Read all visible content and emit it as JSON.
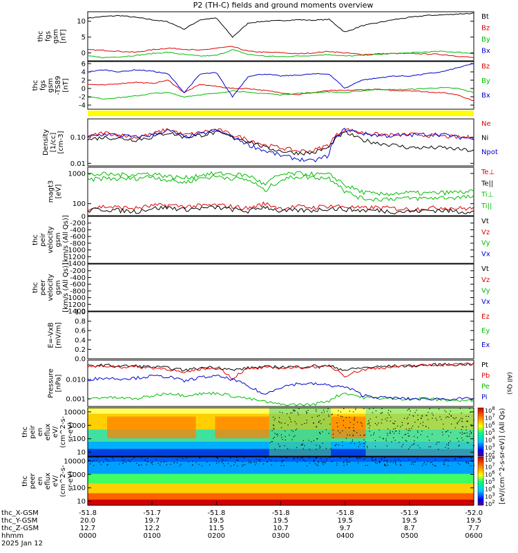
{
  "title": "P2 (TH-C) fields and ground moments overview",
  "panels": [
    {
      "id": "fgs-btot",
      "ylabel": [
        "thc",
        "fgs",
        "gsm",
        "[nT]"
      ],
      "yticks": [
        "10",
        "5",
        "0"
      ],
      "ylim": [
        -2.5,
        13
      ],
      "legend": [
        {
          "text": "Bt",
          "color": "#000000"
        },
        {
          "text": "Bz",
          "color": "#dd0000"
        },
        {
          "text": "By",
          "color": "#00bb00"
        },
        {
          "text": "Bx",
          "color": "#0000cc"
        }
      ]
    },
    {
      "id": "fgs-dsl",
      "ylabel": [
        "thc",
        "fgs",
        "gsm",
        "-TS89",
        "[nT]"
      ],
      "yticks": [
        "6",
        "4",
        "2",
        "0",
        "-2",
        "-4"
      ],
      "ylim": [
        -5,
        6.5
      ],
      "legend": [
        {
          "text": "Bz",
          "color": "#dd0000"
        },
        {
          "text": "By",
          "color": "#00bb00"
        },
        {
          "text": "Bx",
          "color": "#0000cc"
        }
      ]
    },
    {
      "id": "density",
      "ylabel": [
        "Density",
        "[1/cc]",
        "[cm-3]"
      ],
      "yticks": [
        "0.10",
        "0.01"
      ],
      "ylim": [
        0.008,
        0.5
      ],
      "ylog": true,
      "legend": [
        {
          "text": "Ne",
          "color": "#dd0000"
        },
        {
          "text": "Ni",
          "color": "#000000"
        },
        {
          "text": "Npot",
          "color": "#0000cc"
        }
      ]
    },
    {
      "id": "temperature",
      "ylabel": [
        "magt3",
        "[eV]"
      ],
      "yticks": [
        "1000",
        "100"
      ],
      "ylim": [
        40,
        1600
      ],
      "ylog": true,
      "legend": [
        {
          "text": "Te⊥",
          "color": "#dd0000"
        },
        {
          "text": "Te||",
          "color": "#000000"
        },
        {
          "text": "Ti⊥",
          "color": "#00bb00"
        },
        {
          "text": "Ti||",
          "color": "#00bb00"
        }
      ]
    },
    {
      "id": "peir-velocity",
      "ylabel": [
        "thc",
        "peir",
        "velocity",
        "gsm",
        "[km/s (All Qs)]"
      ],
      "yticks": [
        "0",
        "-200",
        "-400",
        "-600",
        "-800",
        "-1000",
        "-1200",
        "-1400"
      ],
      "ylim": [
        -1400,
        0
      ],
      "legend": [
        {
          "text": "Vt",
          "color": "#000000"
        },
        {
          "text": "Vz",
          "color": "#dd0000"
        },
        {
          "text": "Vy",
          "color": "#00bb00"
        },
        {
          "text": "Vx",
          "color": "#0000cc"
        }
      ]
    },
    {
      "id": "peer-velocity",
      "ylabel": [
        "thc",
        "peer",
        "velocity",
        "gsm",
        "[km/s (All Qs)]"
      ],
      "yticks": [
        "-200",
        "-400",
        "-600",
        "-800",
        "-1000",
        "-1200",
        "-1400"
      ],
      "ylim": [
        -1400,
        0
      ],
      "legend": [
        {
          "text": "Vt",
          "color": "#000000"
        },
        {
          "text": "Vz",
          "color": "#dd0000"
        },
        {
          "text": "Vy",
          "color": "#00bb00"
        },
        {
          "text": "Vx",
          "color": "#0000cc"
        }
      ]
    },
    {
      "id": "efield",
      "ylabel": [
        "E=-VxB",
        "[mV/m]"
      ],
      "yticks": [
        "1.0",
        "0.8",
        "0.6",
        "0.4",
        "0.2",
        "0.0"
      ],
      "ylim": [
        0,
        1
      ],
      "legend": [
        {
          "text": "Ez",
          "color": "#dd0000"
        },
        {
          "text": "Ey",
          "color": "#00bb00"
        },
        {
          "text": "Ex",
          "color": "#0000cc"
        }
      ]
    },
    {
      "id": "pressure",
      "ylabel": [
        "Pressure",
        "[nPa]"
      ],
      "yticks": [
        "0.010",
        "0.001"
      ],
      "ylim": [
        0.0004,
        0.1
      ],
      "ylog": true,
      "legend": [
        {
          "text": "Pt",
          "color": "#000000"
        },
        {
          "text": "Pb",
          "color": "#dd0000"
        },
        {
          "text": "Pe",
          "color": "#00bb00"
        },
        {
          "text": "Pi",
          "color": "#0000cc"
        }
      ],
      "legend_side": "(All Qs)"
    },
    {
      "id": "peir-spec",
      "ylabel": [
        "thc",
        "peir",
        "en",
        "eflux",
        "eV/",
        "(cm^2-s-",
        "sr-eV)"
      ],
      "yticks": [
        "10000",
        "1000",
        "100",
        "10"
      ],
      "ylim": [
        5,
        20000
      ],
      "ylog": true
    },
    {
      "id": "peer-spec",
      "ylabel": [
        "thc",
        "peer",
        "en",
        "eflux",
        "eV/",
        "(cm^2-s-",
        "sr-eV)"
      ],
      "yticks": [
        "10000",
        "1000",
        "100",
        "10"
      ],
      "ylim": [
        5,
        20000
      ],
      "ylog": true
    }
  ],
  "colorbar": {
    "label": "[eV/(cm^2-s-sr-eV)] (All Qs)",
    "upper_ticks": [
      "10^8",
      "10^7",
      "10^6",
      "10^5",
      "10^4",
      "10^3",
      "10^2"
    ],
    "lower_ticks": [
      "10^8",
      "10^7",
      "10^6",
      "10^5",
      "10^4",
      "10^3",
      "10^2"
    ]
  },
  "xaxis": {
    "row_labels": [
      "thc_X-GSM",
      "thc_Y-GSM",
      "thc_Z-GSM",
      "hhmm",
      "2025 Jan 12"
    ],
    "columns": [
      {
        "x": "-51.8",
        "y": "20.0",
        "z": "12.7",
        "t": "0000"
      },
      {
        "x": "-51.7",
        "y": "19.7",
        "z": "12.2",
        "t": "0100"
      },
      {
        "x": "-51.8",
        "y": "19.5",
        "z": "11.5",
        "t": "0200"
      },
      {
        "x": "-51.8",
        "y": "19.5",
        "z": "10.7",
        "t": "0300"
      },
      {
        "x": "-51.8",
        "y": "19.5",
        "z": "9.7",
        "t": "0400"
      },
      {
        "x": "-51.9",
        "y": "19.5",
        "z": "8.7",
        "t": "0500"
      },
      {
        "x": "-52.0",
        "y": "19.5",
        "z": "7.7",
        "t": "0600"
      }
    ]
  },
  "chart_data": {
    "type": "line",
    "x_units": "hhmm",
    "x": [
      "0000",
      "0015",
      "0030",
      "0045",
      "0100",
      "0115",
      "0130",
      "0145",
      "0200",
      "0215",
      "0230",
      "0245",
      "0300",
      "0315",
      "0330",
      "0345",
      "0400",
      "0415",
      "0430",
      "0445",
      "0500",
      "0515",
      "0530",
      "0545",
      "0600"
    ],
    "series": [
      {
        "name": "Bt",
        "panel": "fgs-btot",
        "values": [
          11,
          11.5,
          11.8,
          11.2,
          10.5,
          9.8,
          7.5,
          10.5,
          11,
          5,
          9.5,
          10,
          10.2,
          10.5,
          10.3,
          10.6,
          6.5,
          8.5,
          9.5,
          10.5,
          11.2,
          11.8,
          12,
          12.3,
          12.5
        ]
      },
      {
        "name": "Bz",
        "panel": "fgs-btot",
        "values": [
          1,
          0.8,
          0.5,
          0.2,
          1,
          1.5,
          1.2,
          0.8,
          1.5,
          2,
          0.5,
          0.2,
          0.1,
          -0.3,
          0,
          0.5,
          0,
          -0.5,
          -0.3,
          -0.2,
          -0.2,
          -0.3,
          -0.5,
          -1,
          -1.5
        ]
      },
      {
        "name": "By",
        "panel": "fgs-btot",
        "values": [
          -1,
          -1.5,
          -1.2,
          -0.8,
          -0.2,
          0.2,
          -0.5,
          -1,
          -0.8,
          1,
          -0.5,
          -1,
          -1.2,
          -1,
          -0.8,
          -0.5,
          -1,
          -0.8,
          -0.5,
          -0.2,
          0,
          0.3,
          0.5,
          0.2,
          -0.2
        ]
      },
      {
        "name": "Bz",
        "panel": "fgs-dsl",
        "values": [
          1,
          0.8,
          1.2,
          1.5,
          1.2,
          2,
          -1,
          1,
          0.5,
          0,
          0,
          -0.5,
          -1,
          -1.5,
          -1,
          -0.5,
          -0.5,
          -0.3,
          -0.2,
          -0.5,
          -0.5,
          -0.8,
          -1,
          -1.5,
          -3
        ]
      },
      {
        "name": "By",
        "panel": "fgs-dsl",
        "values": [
          -2,
          -2.5,
          -2.2,
          -1.8,
          -1.2,
          -1,
          -2,
          -1.5,
          -1.2,
          -0.5,
          -1,
          -1.2,
          -1.5,
          -1.2,
          -1,
          -0.8,
          -1,
          -0.6,
          -0.2,
          -0.3,
          -0.2,
          0,
          0.2,
          0,
          -1
        ]
      },
      {
        "name": "Bx",
        "panel": "fgs-dsl",
        "values": [
          4,
          4.5,
          4,
          4.5,
          4.2,
          3.5,
          -1,
          3.5,
          3.8,
          -2,
          3,
          3.5,
          3,
          3.2,
          3.5,
          3.5,
          0,
          2,
          2.5,
          3,
          3,
          3.5,
          4,
          5,
          6
        ]
      },
      {
        "name": "Ne",
        "panel": "density",
        "values": [
          0.1,
          0.15,
          0.12,
          0.1,
          0.13,
          0.2,
          0.12,
          0.15,
          0.2,
          0.12,
          0.08,
          0.05,
          0.04,
          0.03,
          0.03,
          0.05,
          0.2,
          0.15,
          0.13,
          0.12,
          0.13,
          0.12,
          0.11,
          0.1,
          0.1
        ]
      },
      {
        "name": "Ni",
        "panel": "density",
        "values": [
          0.08,
          0.1,
          0.09,
          0.08,
          0.1,
          0.15,
          0.1,
          0.12,
          0.15,
          0.1,
          0.07,
          0.04,
          0.03,
          0.025,
          0.025,
          0.04,
          0.15,
          0.08,
          0.06,
          0.05,
          0.04,
          0.04,
          0.04,
          0.035,
          0.03
        ]
      },
      {
        "name": "Npot",
        "panel": "density",
        "values": [
          0.1,
          0.13,
          0.12,
          0.1,
          0.12,
          0.18,
          0.1,
          0.13,
          0.18,
          0.1,
          0.05,
          0.03,
          0.02,
          0.015,
          0.012,
          0.02,
          0.2,
          0.14,
          0.12,
          0.11,
          0.12,
          0.13,
          0.13,
          0.1,
          0.09
        ]
      },
      {
        "name": "Te⊥",
        "panel": "temperature",
        "values": [
          70,
          80,
          75,
          70,
          85,
          90,
          80,
          85,
          90,
          80,
          70,
          100,
          70,
          80,
          75,
          85,
          80,
          70,
          75,
          70,
          65,
          70,
          75,
          70,
          70
        ]
      },
      {
        "name": "Te||",
        "panel": "temperature",
        "values": [
          60,
          65,
          60,
          55,
          70,
          75,
          65,
          70,
          75,
          65,
          55,
          80,
          55,
          60,
          60,
          70,
          65,
          60,
          60,
          55,
          55,
          60,
          60,
          55,
          55
        ]
      },
      {
        "name": "Ti⊥",
        "panel": "temperature",
        "values": [
          900,
          950,
          900,
          950,
          1000,
          800,
          700,
          900,
          1000,
          950,
          850,
          400,
          900,
          1000,
          950,
          900,
          400,
          250,
          200,
          220,
          230,
          220,
          230,
          240,
          250
        ]
      },
      {
        "name": "Ti||",
        "panel": "temperature",
        "values": [
          600,
          700,
          650,
          700,
          800,
          600,
          500,
          700,
          800,
          700,
          600,
          250,
          600,
          800,
          750,
          700,
          250,
          150,
          140,
          150,
          150,
          150,
          160,
          160,
          170
        ]
      },
      {
        "name": "Pt",
        "panel": "pressure",
        "values": [
          0.05,
          0.055,
          0.05,
          0.05,
          0.045,
          0.04,
          0.03,
          0.04,
          0.045,
          0.03,
          0.04,
          0.045,
          0.045,
          0.045,
          0.05,
          0.05,
          0.03,
          0.04,
          0.045,
          0.05,
          0.05,
          0.055,
          0.06,
          0.06,
          0.065
        ]
      },
      {
        "name": "Pb",
        "panel": "pressure",
        "values": [
          0.045,
          0.05,
          0.045,
          0.045,
          0.04,
          0.035,
          0.02,
          0.035,
          0.04,
          0.01,
          0.035,
          0.04,
          0.04,
          0.04,
          0.045,
          0.045,
          0.015,
          0.03,
          0.04,
          0.045,
          0.05,
          0.055,
          0.06,
          0.06,
          0.065
        ]
      },
      {
        "name": "Pe",
        "panel": "pressure",
        "values": [
          0.001,
          0.0012,
          0.0011,
          0.001,
          0.0014,
          0.002,
          0.0015,
          0.0018,
          0.002,
          0.0014,
          0.001,
          0.0007,
          0.0005,
          0.0005,
          0.0005,
          0.0008,
          0.002,
          0.0012,
          0.0011,
          0.001,
          0.001,
          0.001,
          0.0009,
          0.0008,
          0.0008
        ]
      },
      {
        "name": "Pi",
        "panel": "pressure",
        "values": [
          0.01,
          0.012,
          0.011,
          0.012,
          0.015,
          0.014,
          0.008,
          0.013,
          0.015,
          0.01,
          0.004,
          0.0015,
          0.004,
          0.006,
          0.006,
          0.005,
          0.004,
          0.0016,
          0.0012,
          0.0011,
          0.001,
          0.001,
          0.001,
          0.001,
          0.001
        ]
      }
    ]
  }
}
